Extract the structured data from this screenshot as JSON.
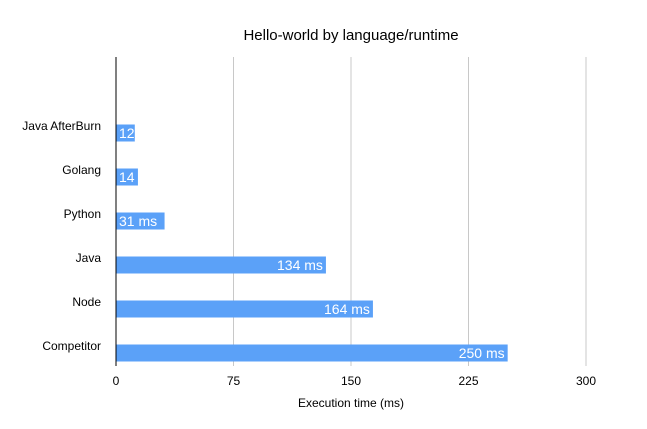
{
  "chart_data": {
    "type": "bar",
    "orientation": "horizontal",
    "title": "Hello-world by language/runtime",
    "xlabel": "Execution time (ms)",
    "ylabel": "",
    "categories": [
      "Java AfterBurn",
      "Golang",
      "Python",
      "Java",
      "Node",
      "Competitor"
    ],
    "values": [
      12,
      14,
      31,
      134,
      164,
      250
    ],
    "value_labels": [
      "12",
      "14",
      "31 ms",
      "134 ms",
      "164 ms",
      "250 ms"
    ],
    "xlim": [
      0,
      300
    ],
    "xticks": [
      0,
      75,
      150,
      225,
      300
    ],
    "xtick_labels": [
      "0",
      "75",
      "150",
      "225",
      "300"
    ],
    "grid": "vertical",
    "legend": "none",
    "colors": {
      "bar": "#5BA1F8",
      "bar_label": "#ffffff",
      "grid": "#C8C8C8",
      "axis": "#000000",
      "text": "#000000"
    }
  }
}
